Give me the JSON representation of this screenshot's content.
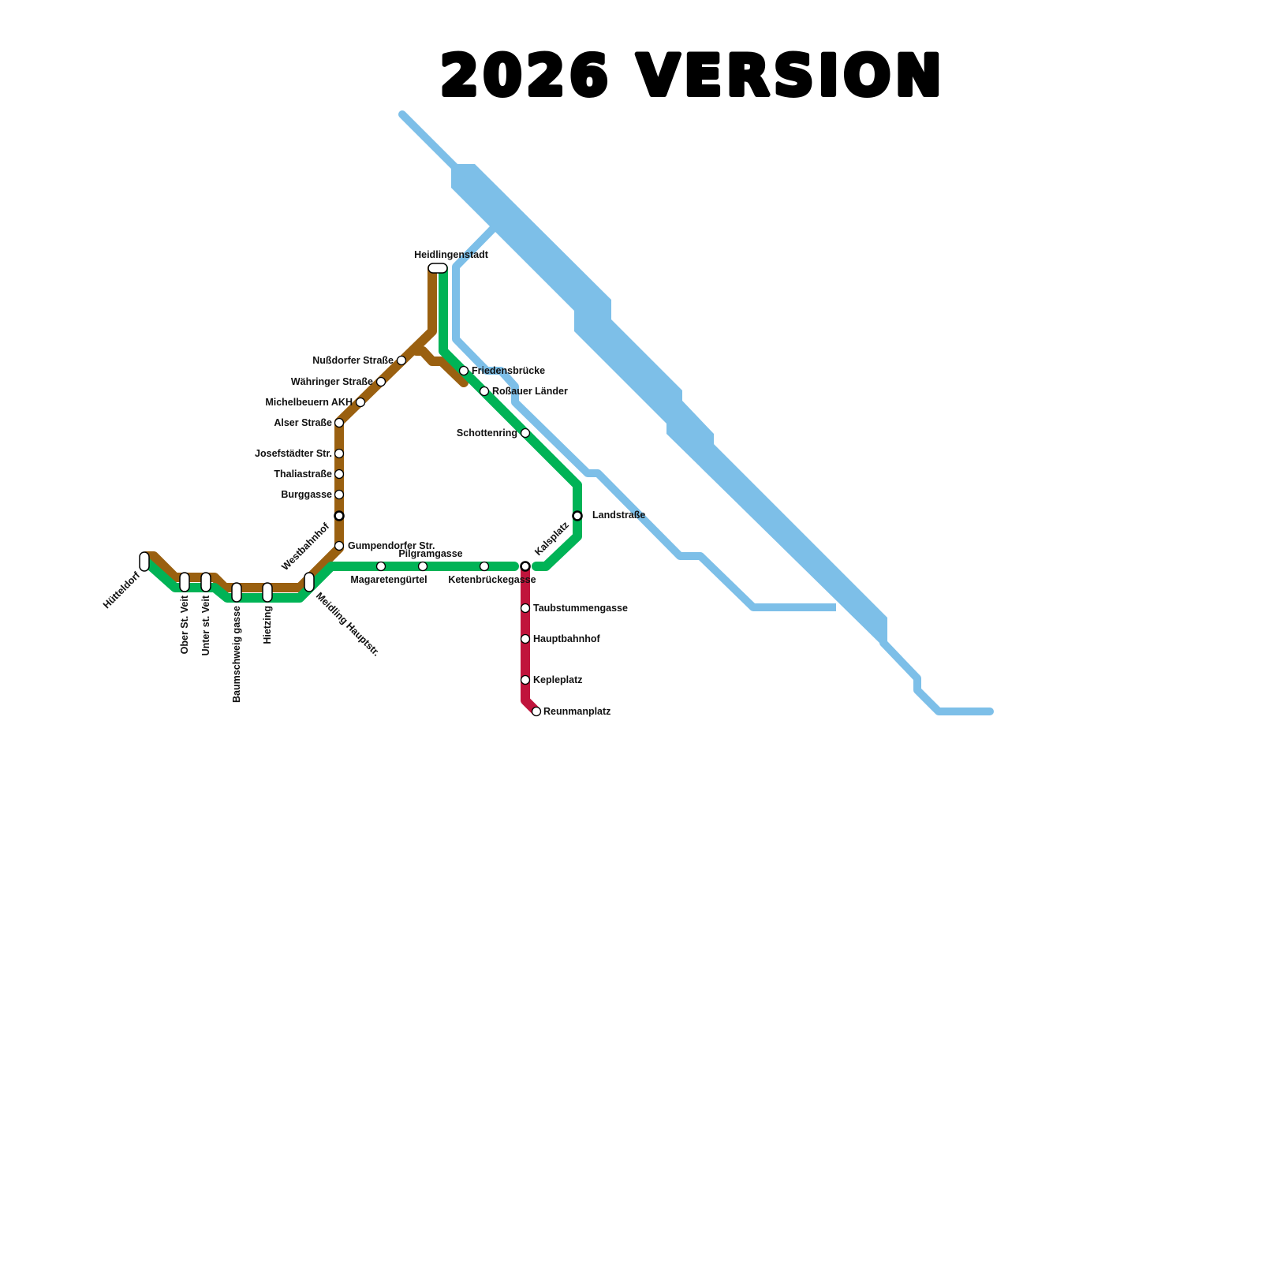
{
  "title": "2026 VERSION",
  "colors": {
    "river": "#7dbfe8",
    "brown_line": "#9a6010",
    "green_line": "#00b356",
    "red_line": "#c0143c"
  },
  "stations": [
    "Hütteldorf",
    "Ober St. Veit",
    "Unter st. Veit",
    "Baumschweig gasse",
    "Hietzing",
    "Meidling Hauptstr.",
    "Westbahnhof",
    "Gumpendorfer Str.",
    "Burggasse",
    "Thaliastraße",
    "Josefstädter Str.",
    "Alser Straße",
    "Michelbeuern AKH",
    "Währinger Straße",
    "Nußdorfer Straße",
    "Heidlingenstadt",
    "Friedensbrücke",
    "Roßauer Länder",
    "Schottenring",
    "Landstraße",
    "Kalsplatz",
    "Ketenbrückegasse",
    "Pilgramgasse",
    "Magaretengürtel",
    "Taubstummengasse",
    "Hauptbahnhof",
    "Kepleplatz",
    "Reunmanplatz"
  ]
}
